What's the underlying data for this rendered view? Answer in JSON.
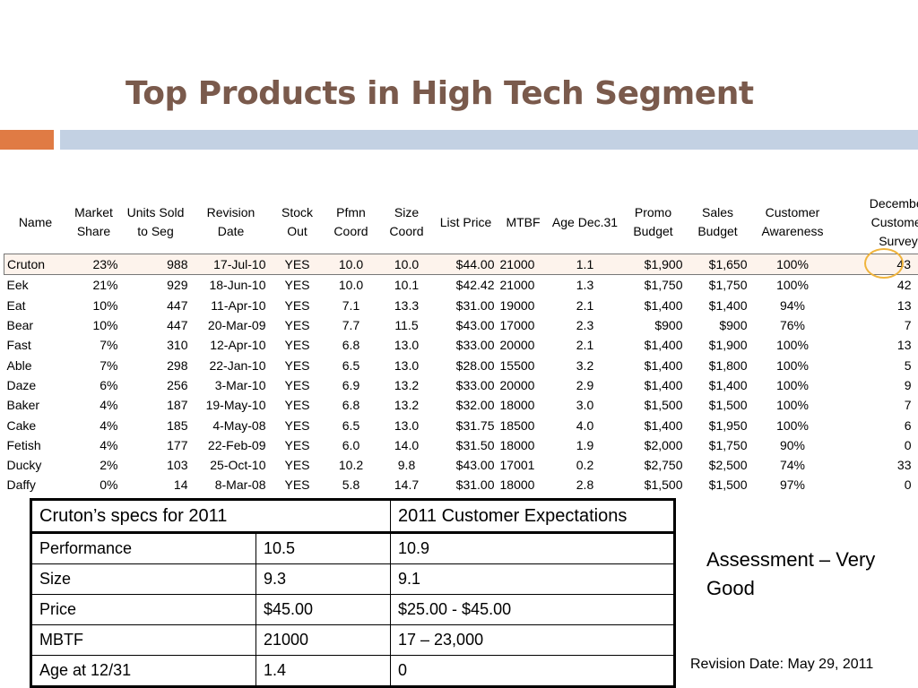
{
  "title": "Top Products in High Tech Segment",
  "columns": [
    "Name",
    "Market Share",
    "Units Sold to Seg",
    "Revision Date",
    "Stock Out",
    "Pfmn Coord",
    "Size Coord",
    "List Price",
    "MTBF",
    "Age Dec.31",
    "Promo Budget",
    "Sales Budget",
    "Customer Awareness",
    "December Customer Survey"
  ],
  "rows": [
    [
      "Cruton",
      "23%",
      "988",
      "17-Jul-10",
      "YES",
      "10.0",
      "10.0",
      "$44.00",
      "21000",
      "1.1",
      "$1,900",
      "$1,650",
      "100%",
      "43"
    ],
    [
      "Eek",
      "21%",
      "929",
      "18-Jun-10",
      "YES",
      "10.0",
      "10.1",
      "$42.42",
      "21000",
      "1.3",
      "$1,750",
      "$1,750",
      "100%",
      "42"
    ],
    [
      "Eat",
      "10%",
      "447",
      "11-Apr-10",
      "YES",
      "7.1",
      "13.3",
      "$31.00",
      "19000",
      "2.1",
      "$1,400",
      "$1,400",
      "94%",
      "13"
    ],
    [
      "Bear",
      "10%",
      "447",
      "20-Mar-09",
      "YES",
      "7.7",
      "11.5",
      "$43.00",
      "17000",
      "2.3",
      "$900",
      "$900",
      "76%",
      "7"
    ],
    [
      "Fast",
      "7%",
      "310",
      "12-Apr-10",
      "YES",
      "6.8",
      "13.0",
      "$33.00",
      "20000",
      "2.1",
      "$1,400",
      "$1,900",
      "100%",
      "13"
    ],
    [
      "Able",
      "7%",
      "298",
      "22-Jan-10",
      "YES",
      "6.5",
      "13.0",
      "$28.00",
      "15500",
      "3.2",
      "$1,400",
      "$1,800",
      "100%",
      "5"
    ],
    [
      "Daze",
      "6%",
      "256",
      "3-Mar-10",
      "YES",
      "6.9",
      "13.2",
      "$33.00",
      "20000",
      "2.9",
      "$1,400",
      "$1,400",
      "100%",
      "9"
    ],
    [
      "Baker",
      "4%",
      "187",
      "19-May-10",
      "YES",
      "6.8",
      "13.2",
      "$32.00",
      "18000",
      "3.0",
      "$1,500",
      "$1,500",
      "100%",
      "7"
    ],
    [
      "Cake",
      "4%",
      "185",
      "4-May-08",
      "YES",
      "6.5",
      "13.0",
      "$31.75",
      "18500",
      "4.0",
      "$1,400",
      "$1,950",
      "100%",
      "6"
    ],
    [
      "Fetish",
      "4%",
      "177",
      "22-Feb-09",
      "YES",
      "6.0",
      "14.0",
      "$31.50",
      "18000",
      "1.9",
      "$2,000",
      "$1,750",
      "90%",
      "0"
    ],
    [
      "Ducky",
      "2%",
      "103",
      "25-Oct-10",
      "YES",
      "10.2",
      "9.8",
      "$43.00",
      "17001",
      "0.2",
      "$2,750",
      "$2,500",
      "74%",
      "33"
    ],
    [
      "Daffy",
      "0%",
      "14",
      "8-Mar-08",
      "YES",
      "5.8",
      "14.7",
      "$31.00",
      "18000",
      "2.8",
      "$1,500",
      "$1,500",
      "97%",
      "0"
    ]
  ],
  "specs": {
    "header_left": "Cruton’s specs for 2011",
    "header_right": "2011 Customer Expectations",
    "rows": [
      [
        "Performance",
        "10.5",
        "10.9"
      ],
      [
        "Size",
        "9.3",
        "9.1"
      ],
      [
        "Price",
        "$45.00",
        "$25.00 - $45.00"
      ],
      [
        "MBTF",
        "21000",
        "17 – 23,000"
      ],
      [
        "Age at 12/31",
        "1.4",
        "0"
      ]
    ]
  },
  "assessment": "Assessment – Very Good",
  "revision": "Revision Date: May 29, 2011",
  "colors": {
    "title": "#7a5a4c",
    "orange_bar": "#e07b44",
    "blue_bar": "#c3d1e3",
    "circle": "#f0b43c",
    "highlight_row": "#fdf3ec"
  }
}
